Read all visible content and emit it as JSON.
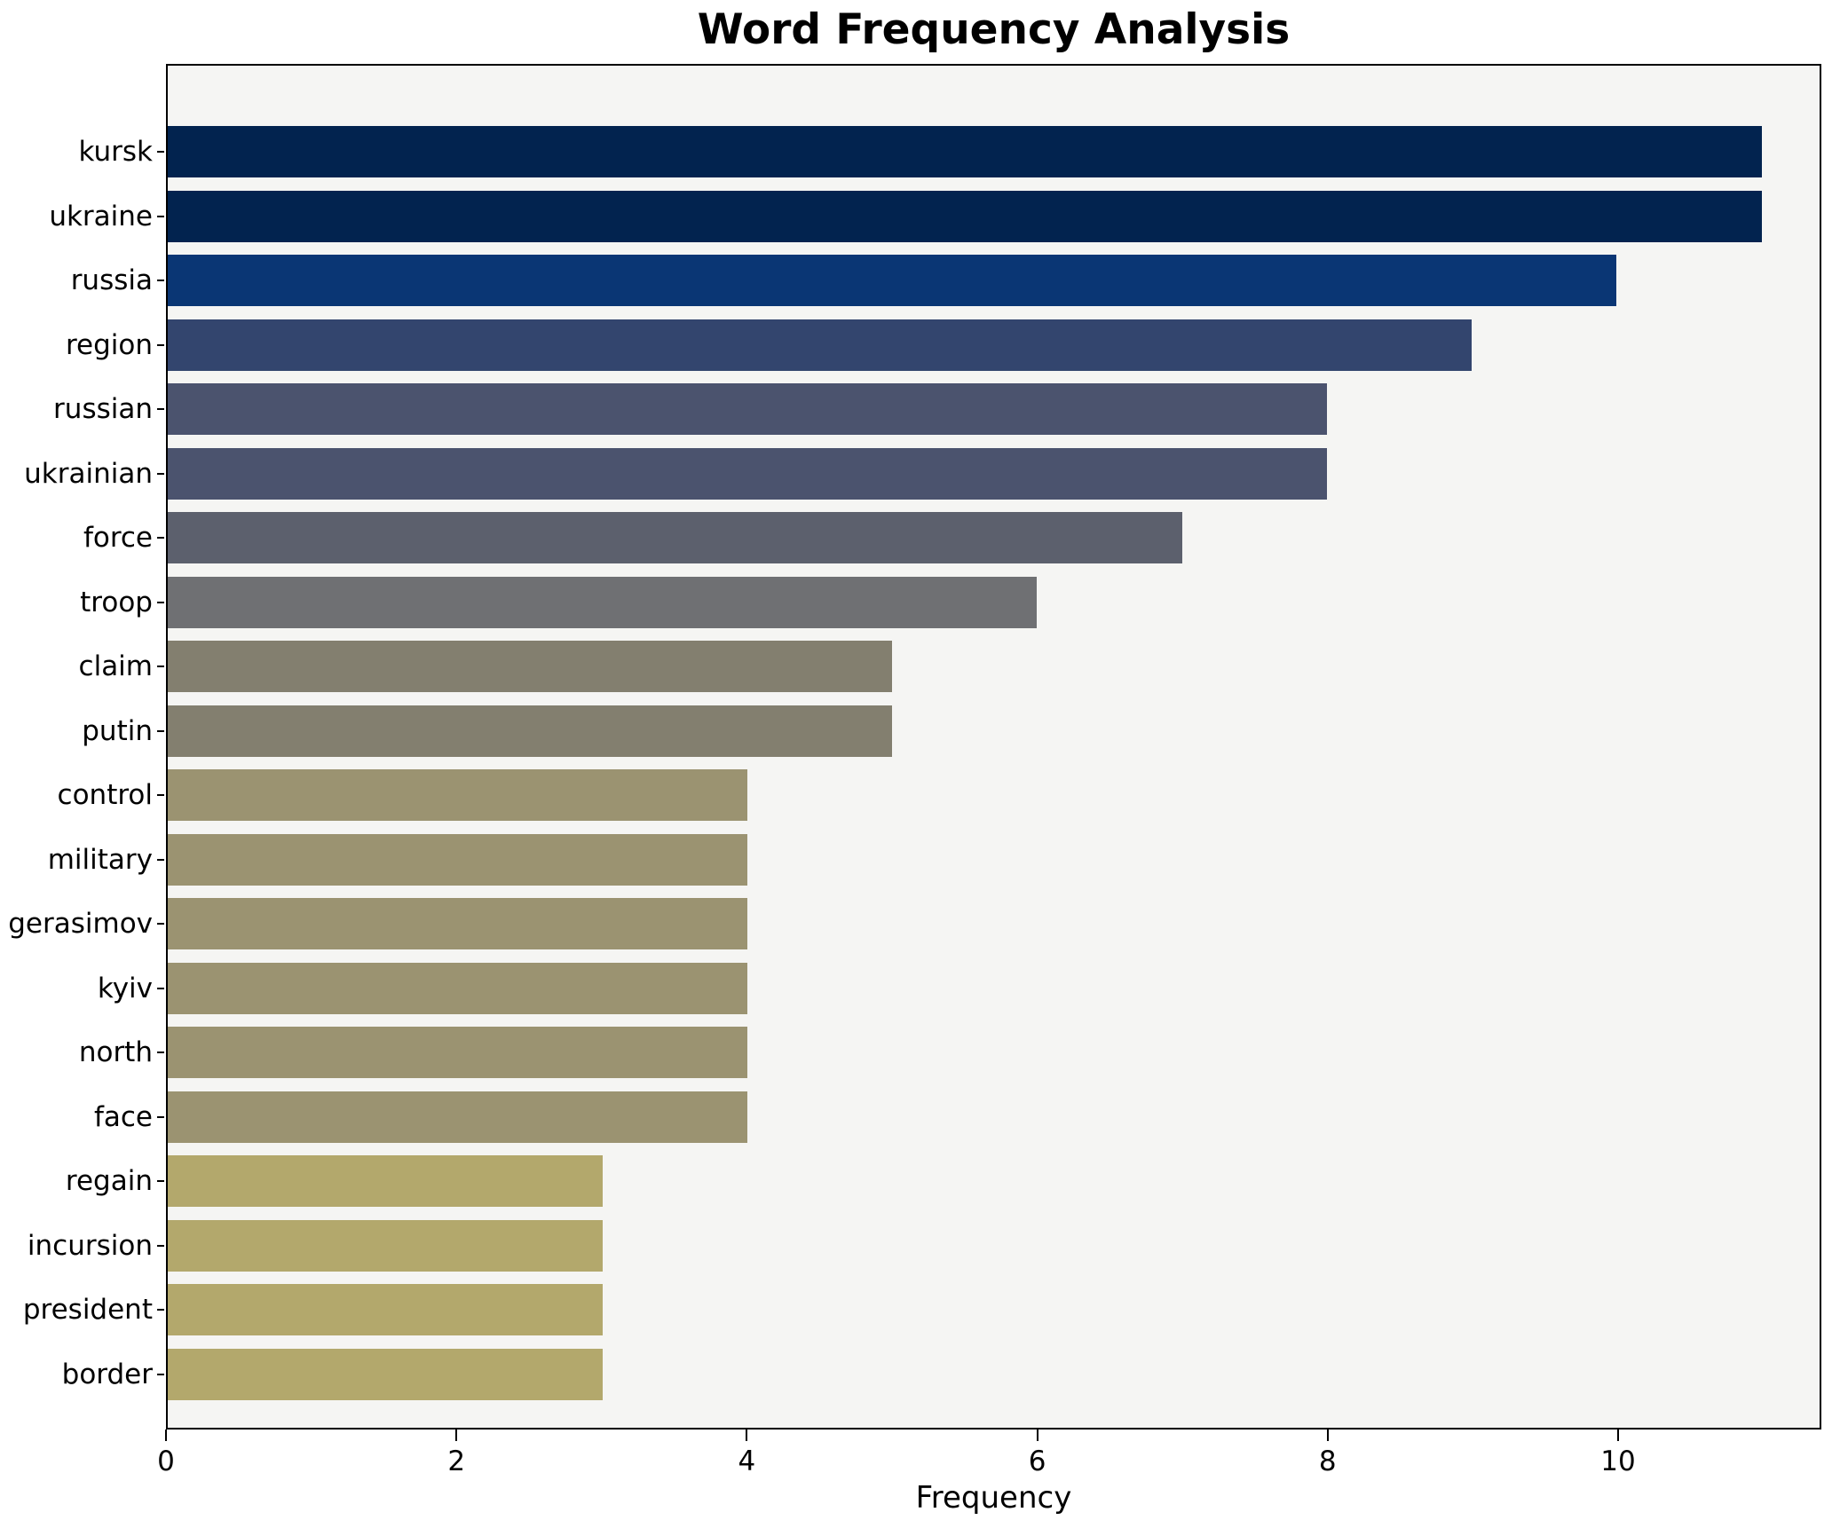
{
  "title": "Word Frequency Analysis",
  "xlabel": "Frequency",
  "chart_data": {
    "type": "bar",
    "orientation": "horizontal",
    "title": "Word Frequency Analysis",
    "xlabel": "Frequency",
    "ylabel": "",
    "grid": false,
    "legend": null,
    "fig_bg": "#ffffff",
    "plot_bg": "#f5f5f3",
    "spine_color": "#000000",
    "xlim": [
      0,
      11.4
    ],
    "xticks": [
      0,
      2,
      4,
      6,
      8,
      10
    ],
    "xtick_labels": [
      "0",
      "2",
      "4",
      "6",
      "8",
      "10"
    ],
    "categories": [
      "kursk",
      "ukraine",
      "russia",
      "region",
      "russian",
      "ukrainian",
      "force",
      "troop",
      "claim",
      "putin",
      "control",
      "military",
      "gerasimov",
      "kyiv",
      "north",
      "face",
      "regain",
      "incursion",
      "president",
      "border"
    ],
    "values": [
      11,
      11,
      10,
      9,
      8,
      8,
      7,
      6,
      5,
      5,
      4,
      4,
      4,
      4,
      4,
      4,
      3,
      3,
      3,
      3
    ],
    "bar_colors": [
      "#02234f",
      "#02234f",
      "#0a3674",
      "#33456e",
      "#4b536e",
      "#4b536e",
      "#5c606d",
      "#6f7073",
      "#837f6f",
      "#837f6f",
      "#9b9371",
      "#9b9371",
      "#9b9371",
      "#9b9371",
      "#9b9371",
      "#9b9371",
      "#b3a86c",
      "#b3a86c",
      "#b3a86c",
      "#b3a86c"
    ]
  }
}
